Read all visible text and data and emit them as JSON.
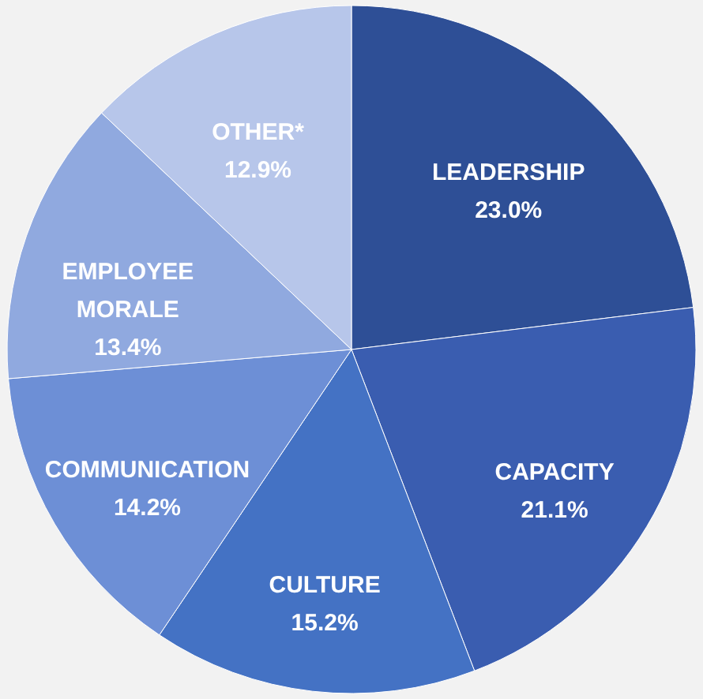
{
  "chart_data": {
    "type": "pie",
    "categories": [
      "LEADERSHIP",
      "CAPACITY",
      "CULTURE",
      "COMMUNICATION",
      "EMPLOYEE MORALE",
      "OTHER*"
    ],
    "values": [
      23.0,
      21.1,
      15.2,
      14.2,
      13.4,
      12.9
    ],
    "value_labels": [
      "23.0%",
      "21.1%",
      "15.2%",
      "14.2%",
      "13.4%",
      "12.9%"
    ],
    "colors": [
      "#2e4f96",
      "#3a5db0",
      "#4472c4",
      "#6d8fd6",
      "#90a9df",
      "#b7c6ea"
    ]
  }
}
